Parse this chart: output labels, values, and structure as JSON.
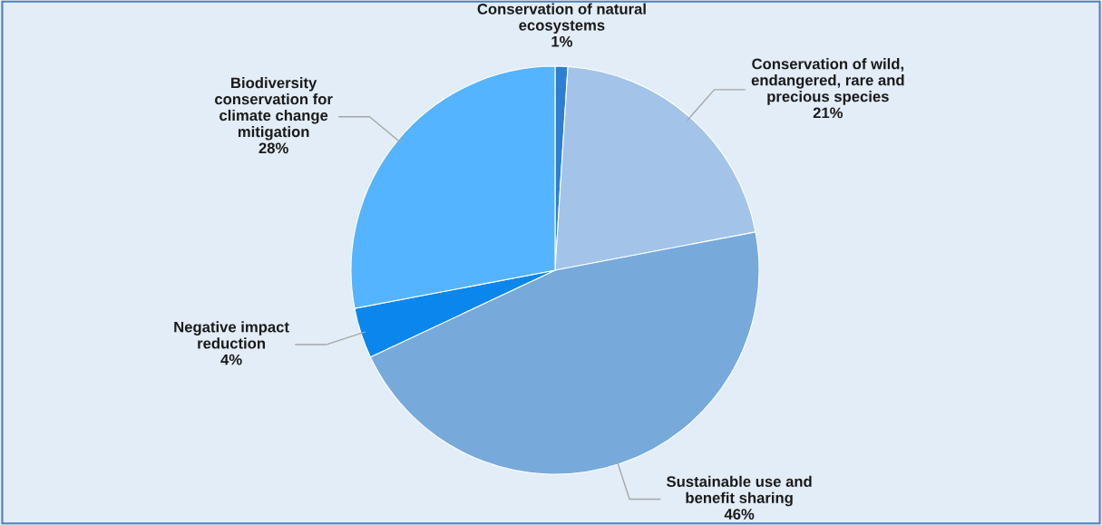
{
  "chart_data": {
    "type": "pie",
    "categories": [
      "Conservation of natural\necosystems",
      "Conservation of wild,\nendangered, rare and\nprecious species",
      "Sustainable use and\nbenefit sharing",
      "Negative impact\nreduction",
      "Biodiversity\nconservation for\nclimate change\nmitigation"
    ],
    "values": [
      1,
      21,
      46,
      4,
      28
    ],
    "value_labels": [
      "1%",
      "21%",
      "46%",
      "4%",
      "28%"
    ],
    "colors": [
      "#2e7fd0",
      "#a3c4e8",
      "#78a9db",
      "#0a86ec",
      "#55b4ff"
    ]
  }
}
